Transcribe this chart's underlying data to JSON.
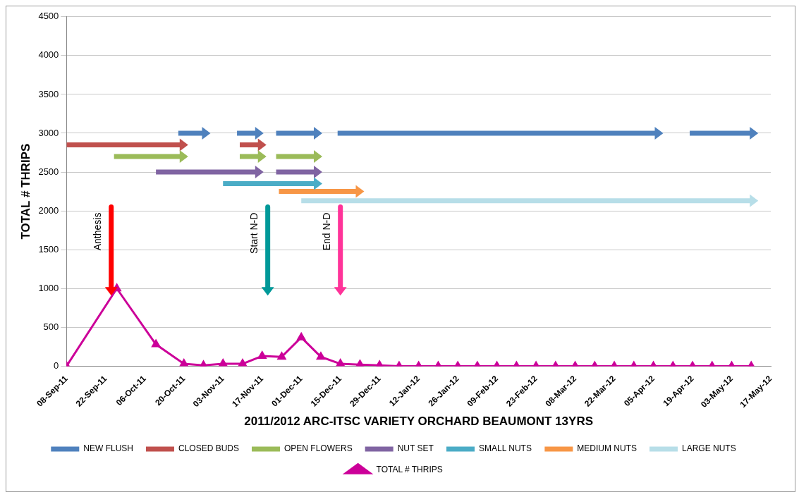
{
  "chart_data": {
    "type": "line",
    "xlabel": "2011/2012 ARC-ITSC VARIETY ORCHARD BEAUMONT 13YRS",
    "ylabel": "TOTAL # THRIPS",
    "xlim": [
      "2011-09-08",
      "2012-05-17"
    ],
    "xticks": [
      {
        "value": "2011-09-08",
        "label": "08-Sep-11"
      },
      {
        "value": "2011-09-22",
        "label": "22-Sep-11"
      },
      {
        "value": "2011-10-06",
        "label": "06-Oct-11"
      },
      {
        "value": "2011-10-20",
        "label": "20-Oct-11"
      },
      {
        "value": "2011-11-03",
        "label": "03-Nov-11"
      },
      {
        "value": "2011-11-17",
        "label": "17-Nov-11"
      },
      {
        "value": "2011-12-01",
        "label": "01-Dec-11"
      },
      {
        "value": "2011-12-15",
        "label": "15-Dec-11"
      },
      {
        "value": "2011-12-29",
        "label": "29-Dec-11"
      },
      {
        "value": "2012-01-12",
        "label": "12-Jan-12"
      },
      {
        "value": "2012-01-26",
        "label": "26-Jan-12"
      },
      {
        "value": "2012-02-09",
        "label": "09-Feb-12"
      },
      {
        "value": "2012-02-23",
        "label": "23-Feb-12"
      },
      {
        "value": "2012-03-08",
        "label": "08-Mar-12"
      },
      {
        "value": "2012-03-22",
        "label": "22-Mar-12"
      },
      {
        "value": "2012-04-05",
        "label": "05-Apr-12"
      },
      {
        "value": "2012-04-19",
        "label": "19-Apr-12"
      },
      {
        "value": "2012-05-03",
        "label": "03-May-12"
      },
      {
        "value": "2012-05-17",
        "label": "17-May-12"
      }
    ],
    "ylim": [
      0,
      4500
    ],
    "yticks": [
      0,
      500,
      1000,
      1500,
      2000,
      2500,
      3000,
      3500,
      4000,
      4500
    ],
    "grid": "y",
    "legend": "bottom",
    "series": [
      {
        "name": "NEW FLUSH",
        "color": "#4f81bd",
        "x": [
          "2011-10-18",
          "2011-10-27"
        ],
        "values": [
          3000,
          3000
        ]
      },
      {
        "color": "#4f81bd",
        "x": [
          "2011-11-08",
          "2011-11-15"
        ],
        "values": [
          3000,
          3000
        ]
      },
      {
        "color": "#4f81bd",
        "x": [
          "2011-11-22",
          "2011-12-06"
        ],
        "values": [
          3000,
          3000
        ]
      },
      {
        "color": "#4f81bd",
        "x": [
          "2011-12-14",
          "2012-04-06"
        ],
        "values": [
          3000,
          3000
        ]
      },
      {
        "color": "#4f81bd",
        "x": [
          "2012-04-18",
          "2012-05-10"
        ],
        "values": [
          3000,
          3000
        ]
      },
      {
        "name": "CLOSED BUDS",
        "color": "#c0504d",
        "x": [
          "2011-09-08",
          "2011-10-19"
        ],
        "values": [
          2850,
          2850
        ]
      },
      {
        "color": "#c0504d",
        "x": [
          "2011-11-09",
          "2011-11-16"
        ],
        "values": [
          2850,
          2850
        ]
      },
      {
        "name": "OPEN FLOWERS",
        "color": "#9bbb59",
        "x": [
          "2011-09-25",
          "2011-10-19"
        ],
        "values": [
          2700,
          2700
        ]
      },
      {
        "color": "#9bbb59",
        "x": [
          "2011-11-09",
          "2011-11-16"
        ],
        "values": [
          2700,
          2700
        ]
      },
      {
        "color": "#9bbb59",
        "x": [
          "2011-11-22",
          "2011-12-06"
        ],
        "values": [
          2700,
          2700
        ]
      },
      {
        "name": "NUT SET",
        "color": "#8064a2",
        "x": [
          "2011-10-10",
          "2011-11-15"
        ],
        "values": [
          2500,
          2500
        ]
      },
      {
        "color": "#8064a2",
        "x": [
          "2011-11-22",
          "2011-12-06"
        ],
        "values": [
          2500,
          2500
        ]
      },
      {
        "name": "SMALL NUTS",
        "color": "#4bacc6",
        "x": [
          "2011-11-03",
          "2011-12-06"
        ],
        "values": [
          2350,
          2350
        ]
      },
      {
        "name": "MEDIUM NUTS",
        "color": "#f79646",
        "x": [
          "2011-11-23",
          "2011-12-21"
        ],
        "values": [
          2250,
          2250
        ]
      },
      {
        "name": "LARGE NUTS",
        "color": "#b7dee8",
        "x": [
          "2011-12-01",
          "2012-05-10"
        ],
        "values": [
          2130,
          2130
        ]
      },
      {
        "name": "TOTAL # THRIPS",
        "color": "#cc0099",
        "marker": "triangle",
        "x": [
          "2011-09-08",
          "2011-09-26",
          "2011-10-10",
          "2011-10-20",
          "2011-10-27",
          "2011-11-03",
          "2011-11-10",
          "2011-11-17",
          "2011-11-24",
          "2011-12-01",
          "2011-12-08",
          "2011-12-15",
          "2011-12-22",
          "2011-12-29",
          "2012-01-05",
          "2012-01-12",
          "2012-01-19",
          "2012-01-26",
          "2012-02-02",
          "2012-02-09",
          "2012-02-16",
          "2012-02-23",
          "2012-03-01",
          "2012-03-08",
          "2012-03-15",
          "2012-03-22",
          "2012-03-29",
          "2012-04-05",
          "2012-04-12",
          "2012-04-19",
          "2012-04-26",
          "2012-05-03",
          "2012-05-10"
        ],
        "values": [
          0,
          1000,
          280,
          30,
          10,
          30,
          30,
          130,
          120,
          370,
          120,
          30,
          20,
          10,
          0,
          0,
          0,
          0,
          0,
          0,
          0,
          0,
          0,
          0,
          0,
          0,
          0,
          0,
          0,
          0,
          0,
          0,
          0
        ]
      },
      {
        "name": "Anthesis",
        "color": "#ff0000",
        "x": [
          "2011-09-24",
          "2011-09-24"
        ],
        "values": [
          2050,
          1000
        ]
      },
      {
        "name": "Start N-D",
        "color": "#009999",
        "x": [
          "2011-11-19",
          "2011-11-19"
        ],
        "values": [
          2050,
          1000
        ]
      },
      {
        "name": "End N-D",
        "color": "#ff3399",
        "x": [
          "2011-12-15",
          "2011-12-15"
        ],
        "values": [
          2050,
          1000
        ]
      }
    ]
  }
}
